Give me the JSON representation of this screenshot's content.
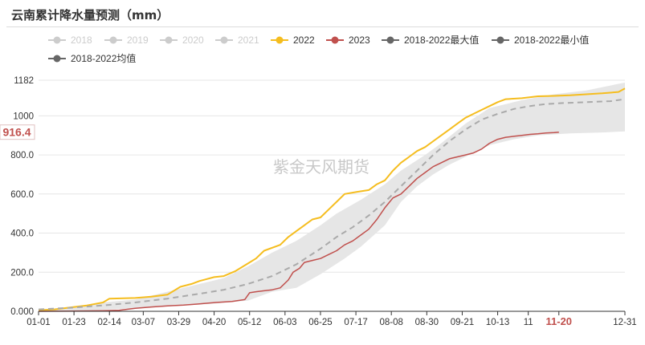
{
  "title": "云南累计降水量预测（mm）",
  "watermark": "紫金天风期货",
  "legend": [
    {
      "key": "y2018",
      "label": "2018",
      "color": "#cccccc",
      "type": "line",
      "active": false
    },
    {
      "key": "y2019",
      "label": "2019",
      "color": "#cccccc",
      "type": "line",
      "active": false
    },
    {
      "key": "y2020",
      "label": "2020",
      "color": "#cccccc",
      "type": "line",
      "active": false
    },
    {
      "key": "y2021",
      "label": "2021",
      "color": "#cccccc",
      "type": "line",
      "active": false
    },
    {
      "key": "y2022",
      "label": "2022",
      "color": "#f5bd1f",
      "type": "line",
      "active": true
    },
    {
      "key": "y2023",
      "label": "2023",
      "color": "#c0504d",
      "type": "line",
      "active": true
    },
    {
      "key": "max",
      "label": "2018-2022最大值",
      "color": "#666666",
      "type": "line",
      "active": true
    },
    {
      "key": "min",
      "label": "2018-2022最小值",
      "color": "#666666",
      "type": "line",
      "active": true
    },
    {
      "key": "avg",
      "label": "2018-2022均值",
      "color": "#666666",
      "type": "line",
      "active": true
    }
  ],
  "chart_data": {
    "type": "line",
    "x_axis": {
      "ticks": [
        "01-01",
        "01-23",
        "02-14",
        "03-07",
        "03-29",
        "04-20",
        "05-12",
        "06-03",
        "06-25",
        "07-17",
        "08-08",
        "08-30",
        "09-21",
        "10-13",
        "11",
        "11-20",
        "12-31"
      ],
      "tick_days": [
        0,
        22,
        44,
        65,
        87,
        109,
        131,
        153,
        175,
        197,
        219,
        241,
        263,
        285,
        304,
        323,
        364
      ],
      "highlight": "11-20",
      "range_days": [
        0,
        364
      ]
    },
    "y_axis": {
      "ticks": [
        0,
        200,
        400,
        600,
        800,
        1000,
        1182
      ],
      "tick_labels": [
        "0.000",
        "200.0",
        "400.0",
        "600.0",
        "800.0",
        "1000",
        "1182"
      ],
      "range": [
        0,
        1182
      ]
    },
    "callout": {
      "label": "916.4",
      "value": 916.4
    },
    "band": {
      "fill": "#e6e6e6",
      "max": [
        [
          0,
          10
        ],
        [
          20,
          20
        ],
        [
          40,
          45
        ],
        [
          60,
          60
        ],
        [
          80,
          100
        ],
        [
          100,
          140
        ],
        [
          115,
          170
        ],
        [
          130,
          230
        ],
        [
          145,
          300
        ],
        [
          160,
          360
        ],
        [
          175,
          440
        ],
        [
          185,
          500
        ],
        [
          200,
          570
        ],
        [
          215,
          650
        ],
        [
          225,
          720
        ],
        [
          240,
          800
        ],
        [
          250,
          860
        ],
        [
          265,
          960
        ],
        [
          280,
          1040
        ],
        [
          300,
          1080
        ],
        [
          320,
          1110
        ],
        [
          340,
          1130
        ],
        [
          364,
          1170
        ]
      ],
      "min": [
        [
          0,
          0
        ],
        [
          30,
          5
        ],
        [
          60,
          15
        ],
        [
          90,
          30
        ],
        [
          110,
          40
        ],
        [
          130,
          55
        ],
        [
          145,
          100
        ],
        [
          160,
          120
        ],
        [
          175,
          190
        ],
        [
          190,
          270
        ],
        [
          200,
          330
        ],
        [
          215,
          440
        ],
        [
          225,
          560
        ],
        [
          235,
          640
        ],
        [
          245,
          700
        ],
        [
          255,
          750
        ],
        [
          265,
          790
        ],
        [
          280,
          850
        ],
        [
          295,
          880
        ],
        [
          310,
          900
        ],
        [
          330,
          910
        ],
        [
          350,
          915
        ],
        [
          364,
          920
        ]
      ]
    },
    "series": [
      {
        "name": "2022",
        "color": "#f5bd1f",
        "dash": false,
        "width": 2,
        "points": [
          [
            0,
            5
          ],
          [
            10,
            10
          ],
          [
            20,
            20
          ],
          [
            30,
            30
          ],
          [
            40,
            45
          ],
          [
            44,
            65
          ],
          [
            60,
            68
          ],
          [
            70,
            75
          ],
          [
            80,
            85
          ],
          [
            88,
            125
          ],
          [
            95,
            140
          ],
          [
            100,
            155
          ],
          [
            109,
            175
          ],
          [
            115,
            180
          ],
          [
            122,
            205
          ],
          [
            131,
            250
          ],
          [
            135,
            270
          ],
          [
            140,
            310
          ],
          [
            150,
            340
          ],
          [
            155,
            380
          ],
          [
            160,
            410
          ],
          [
            165,
            440
          ],
          [
            170,
            470
          ],
          [
            175,
            480
          ],
          [
            180,
            520
          ],
          [
            185,
            560
          ],
          [
            190,
            600
          ],
          [
            197,
            610
          ],
          [
            205,
            620
          ],
          [
            210,
            650
          ],
          [
            215,
            670
          ],
          [
            220,
            720
          ],
          [
            225,
            760
          ],
          [
            230,
            790
          ],
          [
            235,
            820
          ],
          [
            240,
            840
          ],
          [
            245,
            870
          ],
          [
            250,
            900
          ],
          [
            255,
            930
          ],
          [
            260,
            960
          ],
          [
            265,
            990
          ],
          [
            270,
            1010
          ],
          [
            275,
            1030
          ],
          [
            280,
            1050
          ],
          [
            285,
            1070
          ],
          [
            290,
            1085
          ],
          [
            300,
            1090
          ],
          [
            310,
            1100
          ],
          [
            320,
            1102
          ],
          [
            330,
            1105
          ],
          [
            340,
            1110
          ],
          [
            350,
            1115
          ],
          [
            360,
            1122
          ],
          [
            364,
            1140
          ]
        ]
      },
      {
        "name": "2023",
        "color": "#c0504d",
        "dash": false,
        "width": 1.5,
        "points": [
          [
            0,
            0
          ],
          [
            20,
            1
          ],
          [
            40,
            3
          ],
          [
            50,
            5
          ],
          [
            60,
            15
          ],
          [
            70,
            22
          ],
          [
            80,
            28
          ],
          [
            90,
            32
          ],
          [
            100,
            38
          ],
          [
            110,
            45
          ],
          [
            120,
            50
          ],
          [
            128,
            60
          ],
          [
            131,
            95
          ],
          [
            135,
            100
          ],
          [
            140,
            105
          ],
          [
            145,
            110
          ],
          [
            150,
            120
          ],
          [
            155,
            160
          ],
          [
            158,
            200
          ],
          [
            162,
            220
          ],
          [
            165,
            250
          ],
          [
            170,
            260
          ],
          [
            175,
            270
          ],
          [
            180,
            290
          ],
          [
            185,
            310
          ],
          [
            190,
            340
          ],
          [
            195,
            360
          ],
          [
            200,
            390
          ],
          [
            205,
            420
          ],
          [
            210,
            470
          ],
          [
            215,
            530
          ],
          [
            220,
            580
          ],
          [
            225,
            600
          ],
          [
            230,
            640
          ],
          [
            235,
            680
          ],
          [
            240,
            710
          ],
          [
            245,
            740
          ],
          [
            250,
            760
          ],
          [
            255,
            780
          ],
          [
            260,
            790
          ],
          [
            265,
            800
          ],
          [
            270,
            810
          ],
          [
            275,
            830
          ],
          [
            280,
            860
          ],
          [
            285,
            880
          ],
          [
            290,
            890
          ],
          [
            295,
            895
          ],
          [
            300,
            900
          ],
          [
            305,
            905
          ],
          [
            310,
            908
          ],
          [
            315,
            912
          ],
          [
            320,
            914
          ],
          [
            323,
            916.4
          ]
        ]
      },
      {
        "name": "2018-2022均值",
        "color": "#aaaaaa",
        "dash": true,
        "width": 2,
        "points": [
          [
            0,
            10
          ],
          [
            20,
            18
          ],
          [
            40,
            30
          ],
          [
            60,
            45
          ],
          [
            80,
            65
          ],
          [
            100,
            90
          ],
          [
            115,
            110
          ],
          [
            130,
            140
          ],
          [
            145,
            180
          ],
          [
            160,
            240
          ],
          [
            175,
            320
          ],
          [
            185,
            380
          ],
          [
            195,
            430
          ],
          [
            205,
            490
          ],
          [
            215,
            560
          ],
          [
            225,
            640
          ],
          [
            235,
            720
          ],
          [
            245,
            800
          ],
          [
            255,
            870
          ],
          [
            265,
            930
          ],
          [
            275,
            980
          ],
          [
            285,
            1010
          ],
          [
            295,
            1035
          ],
          [
            305,
            1050
          ],
          [
            315,
            1060
          ],
          [
            325,
            1065
          ],
          [
            340,
            1070
          ],
          [
            355,
            1075
          ],
          [
            364,
            1085
          ]
        ]
      }
    ]
  }
}
